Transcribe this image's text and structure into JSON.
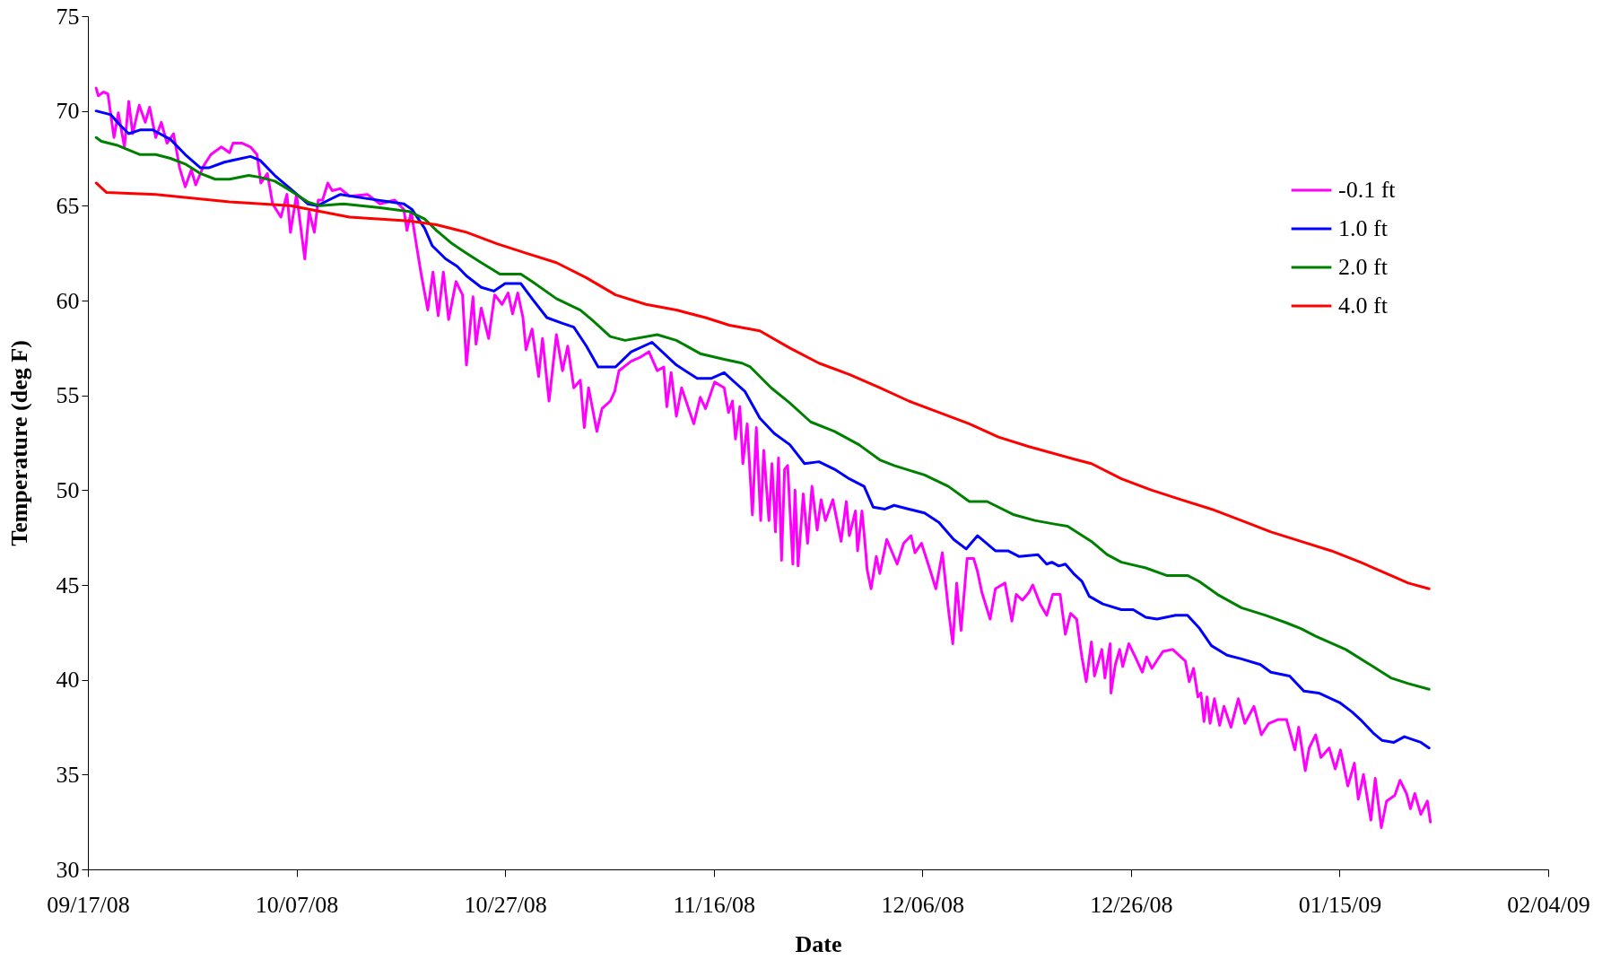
{
  "chart_data": {
    "type": "line",
    "xlabel": "Date",
    "ylabel": "Temperature (deg F)",
    "xlim": [
      "2008-09-17",
      "2009-02-04"
    ],
    "xticks": [
      {
        "value": "2008-09-17",
        "label": "09/17/08"
      },
      {
        "value": "2008-10-07",
        "label": "10/07/08"
      },
      {
        "value": "2008-10-27",
        "label": "10/27/08"
      },
      {
        "value": "2008-11-16",
        "label": "11/16/08"
      },
      {
        "value": "2008-12-06",
        "label": "12/06/08"
      },
      {
        "value": "2008-12-26",
        "label": "12/26/08"
      },
      {
        "value": "2009-01-15",
        "label": "01/15/09"
      },
      {
        "value": "2009-02-04",
        "label": "02/04/09"
      }
    ],
    "ylim": [
      30,
      75
    ],
    "yticks": [
      30,
      35,
      40,
      45,
      50,
      55,
      60,
      65,
      70,
      75
    ],
    "grid": false,
    "legend": "top right",
    "series": [
      {
        "name": "-0.1 ft",
        "color": "#ff00ff",
        "x": [
          "2008-09-17T19:00",
          "2008-09-18T00:00",
          "2008-09-18T12:00",
          "2008-09-18T22:00",
          "2008-09-19T12:00",
          "2008-09-19T22:00",
          "2008-09-20T12:00",
          "2008-09-20T22:00",
          "2008-09-21T07:00",
          "2008-09-21T22:00",
          "2008-09-22T12:00",
          "2008-09-22T22:00",
          "2008-09-23T12:00",
          "2008-09-24T01:00",
          "2008-09-24T14:00",
          "2008-09-25T05:00",
          "2008-09-25T19:00",
          "2008-09-26T08:00",
          "2008-09-26T22:00",
          "2008-09-27T08:00",
          "2008-09-28T02:00",
          "2008-09-28T19:00",
          "2008-09-29T19:00",
          "2008-09-30T14:00",
          "2008-09-30T22:00",
          "2008-10-01T19:00",
          "2008-10-02T14:00",
          "2008-10-03T05:00",
          "2008-10-03T14:00",
          "2008-10-04T05:00",
          "2008-10-04T17:00",
          "2008-10-05T12:00",
          "2008-10-06T02:00",
          "2008-10-06T10:00",
          "2008-10-07T00:00",
          "2008-10-07T19:00",
          "2008-10-08T05:00",
          "2008-10-08T17:00",
          "2008-10-09T02:00",
          "2008-10-09T12:00",
          "2008-10-10T00:00",
          "2008-10-10T10:00",
          "2008-10-11T05:00",
          "2008-10-12T02:00",
          "2008-10-13T19:00",
          "2008-10-15T00:00",
          "2008-10-16T10:00",
          "2008-10-17T07:00",
          "2008-10-17T14:00",
          "2008-10-18T00:00",
          "2008-10-18T10:00",
          "2008-10-18T22:00",
          "2008-10-19T14:00",
          "2008-10-20T02:00",
          "2008-10-20T14:00",
          "2008-10-21T02:00",
          "2008-10-21T14:00",
          "2008-10-22T07:00",
          "2008-10-22T22:00",
          "2008-10-23T07:00",
          "2008-10-23T22:00",
          "2008-10-24T05:00",
          "2008-10-24T17:00",
          "2008-10-25T10:00",
          "2008-10-26T00:00",
          "2008-10-26T17:00",
          "2008-10-27T07:00",
          "2008-10-27T17:00",
          "2008-10-28T05:00",
          "2008-10-28T17:00",
          "2008-10-29T00:00",
          "2008-10-29T14:00",
          "2008-10-30T05:00",
          "2008-10-30T14:00",
          "2008-10-31T05:00",
          "2008-10-31T22:00",
          "2008-11-01T12:00",
          "2008-11-02T00:00",
          "2008-11-02T14:00",
          "2008-11-03T05:00",
          "2008-11-03T14:00",
          "2008-11-04T00:00",
          "2008-11-04T19:00",
          "2008-11-05T07:00",
          "2008-11-06T02:00",
          "2008-11-06T12:00",
          "2008-11-06T22:00",
          "2008-11-08T02:00",
          "2008-11-08T22:00",
          "2008-11-09T19:00",
          "2008-11-10T14:00",
          "2008-11-11T05:00",
          "2008-11-11T12:00",
          "2008-11-11T22:00",
          "2008-11-12T10:00",
          "2008-11-12T22:00",
          "2008-11-14T02:00",
          "2008-11-14T17:00",
          "2008-11-15T05:00",
          "2008-11-16T02:00",
          "2008-11-17T00:00",
          "2008-11-17T10:00",
          "2008-11-17T19:00",
          "2008-11-18T02:00",
          "2008-11-18T12:00",
          "2008-11-18T19:00",
          "2008-11-19T05:00",
          "2008-11-19T17:00",
          "2008-11-20T02:00",
          "2008-11-20T12:00",
          "2008-11-20T19:00",
          "2008-11-21T07:00",
          "2008-11-21T14:00",
          "2008-11-21T22:00",
          "2008-11-22T05:00",
          "2008-11-22T12:00",
          "2008-11-22T19:00",
          "2008-11-23T02:00",
          "2008-11-23T14:00",
          "2008-11-23T19:00",
          "2008-11-24T02:00",
          "2008-11-24T14:00",
          "2008-11-25T00:00",
          "2008-11-25T10:00",
          "2008-11-25T22:00",
          "2008-11-26T07:00",
          "2008-11-26T17:00",
          "2008-11-27T10:00",
          "2008-11-28T05:00",
          "2008-11-28T17:00",
          "2008-11-29T00:00",
          "2008-11-29T14:00",
          "2008-11-29T19:00",
          "2008-11-30T05:00",
          "2008-11-30T12:00",
          "2008-11-30T17:00",
          "2008-12-01T02:00",
          "2008-12-01T14:00",
          "2008-12-01T22:00",
          "2008-12-02T14:00",
          "2008-12-03T14:00",
          "2008-12-04T05:00",
          "2008-12-04T22:00",
          "2008-12-05T07:00",
          "2008-12-05T22:00",
          "2008-12-06T19:00",
          "2008-12-07T07:00",
          "2008-12-07T22:00",
          "2008-12-08T12:00",
          "2008-12-08T22:00",
          "2008-12-09T07:00",
          "2008-12-09T17:00",
          "2008-12-10T07:00",
          "2008-12-10T22:00",
          "2008-12-11T07:00",
          "2008-12-11T17:00",
          "2008-12-12T12:00",
          "2008-12-13T00:00",
          "2008-12-13T22:00",
          "2008-12-14T14:00",
          "2008-12-15T00:00",
          "2008-12-15T14:00",
          "2008-12-16T05:00",
          "2008-12-16T14:00",
          "2008-12-17T07:00",
          "2008-12-17T22:00",
          "2008-12-18T12:00",
          "2008-12-19T05:00",
          "2008-12-19T17:00",
          "2008-12-20T05:00",
          "2008-12-20T19:00",
          "2008-12-21T02:00",
          "2008-12-21T07:00",
          "2008-12-21T17:00",
          "2008-12-22T05:00",
          "2008-12-22T12:00",
          "2008-12-23T05:00",
          "2008-12-23T12:00",
          "2008-12-24T00:00",
          "2008-12-24T02:00",
          "2008-12-24T12:00",
          "2008-12-24T22:00",
          "2008-12-25T05:00",
          "2008-12-25T19:00",
          "2008-12-26T10:00",
          "2008-12-27T02:00",
          "2008-12-27T12:00",
          "2008-12-28T00:00",
          "2008-12-28T17:00",
          "2008-12-29T02:00",
          "2008-12-30T00:00",
          "2008-12-30T19:00",
          "2008-12-31T05:00",
          "2008-12-31T14:00",
          "2009-01-01T00:00",
          "2009-01-01T10:00",
          "2009-01-01T17:00",
          "2009-01-02T00:00",
          "2009-01-02T07:00",
          "2009-01-02T14:00",
          "2009-01-03T00:00",
          "2009-01-03T12:00",
          "2009-01-03T22:00",
          "2009-01-04T14:00",
          "2009-01-05T07:00",
          "2009-01-05T22:00",
          "2009-01-06T19:00",
          "2009-01-07T12:00",
          "2009-01-08T05:00",
          "2009-01-09T02:00",
          "2009-01-09T22:00",
          "2009-01-10T17:00",
          "2009-01-11T02:00",
          "2009-01-11T17:00",
          "2009-01-12T02:00",
          "2009-01-12T17:00",
          "2009-01-13T05:00",
          "2009-01-14T00:00",
          "2009-01-14T14:00",
          "2009-01-15T02:00",
          "2009-01-15T19:00",
          "2009-01-16T10:00",
          "2009-01-16T19:00",
          "2009-01-17T07:00",
          "2009-01-18T00:00",
          "2009-01-18T10:00",
          "2009-01-19T00:00",
          "2009-01-19T12:00",
          "2009-01-20T07:00",
          "2009-01-20T19:00",
          "2009-01-21T10:00",
          "2009-01-21T19:00",
          "2009-01-22T05:00",
          "2009-01-22T19:00",
          "2009-01-23T10:00",
          "2009-01-23T17:00"
        ],
        "values": [
          71.2,
          70.8,
          71.0,
          70.9,
          68.6,
          69.9,
          68.1,
          70.5,
          68.8,
          70.3,
          69.4,
          70.2,
          68.6,
          69.4,
          68.3,
          68.8,
          67.0,
          66.0,
          66.9,
          66.1,
          67.1,
          67.7,
          68.1,
          67.8,
          68.3,
          68.3,
          68.1,
          67.7,
          66.2,
          66.7,
          65.1,
          64.4,
          65.6,
          63.6,
          65.6,
          62.2,
          64.7,
          63.6,
          65.3,
          65.3,
          66.2,
          65.8,
          65.9,
          65.5,
          65.6,
          65.1,
          65.3,
          64.8,
          63.7,
          64.7,
          63.2,
          61.5,
          59.5,
          61.5,
          59.2,
          61.5,
          59.0,
          61.0,
          60.3,
          56.6,
          60.2,
          57.7,
          59.6,
          58.0,
          60.3,
          59.8,
          60.4,
          59.3,
          60.4,
          59.1,
          57.4,
          58.5,
          56.0,
          58.0,
          54.7,
          58.2,
          56.3,
          57.6,
          55.4,
          55.8,
          53.3,
          55.4,
          53.1,
          54.3,
          54.7,
          55.2,
          56.3,
          56.8,
          57.0,
          57.3,
          56.3,
          56.5,
          54.4,
          56.2,
          53.9,
          55.4,
          53.5,
          54.9,
          54.3,
          55.7,
          55.4,
          54.1,
          54.7,
          52.7,
          54.4,
          51.4,
          53.5,
          48.7,
          53.3,
          48.4,
          52.1,
          48.4,
          51.4,
          47.8,
          51.7,
          46.3,
          51.1,
          51.3,
          46.1,
          50.0,
          46.0,
          49.8,
          47.2,
          50.2,
          47.9,
          49.5,
          48.4,
          49.5,
          47.3,
          49.4,
          47.6,
          48.9,
          46.8,
          48.9,
          47.2,
          45.8,
          44.8,
          46.5,
          45.6,
          47.4,
          46.1,
          47.2,
          47.6,
          46.7,
          47.2,
          45.7,
          44.8,
          46.7,
          43.7,
          41.9,
          45.1,
          42.6,
          46.4,
          46.4,
          45.7,
          44.6,
          43.2,
          44.8,
          45.1,
          43.1,
          44.5,
          44.2,
          44.6,
          45.0,
          44.0,
          43.4,
          44.5,
          44.5,
          42.4,
          43.5,
          43.2,
          42.0,
          41.2,
          39.9,
          42.0,
          40.2,
          41.6,
          40.1,
          41.9,
          39.3,
          40.8,
          41.6,
          40.7,
          41.9,
          41.2,
          40.4,
          41.2,
          40.6,
          41.2,
          41.5,
          41.6,
          41.2,
          41.0,
          39.9,
          40.6,
          39.1,
          39.3,
          37.8,
          39.1,
          37.7,
          39.0,
          37.6,
          38.6,
          37.5,
          39.0,
          37.7,
          38.6,
          37.1,
          37.7,
          37.9,
          37.9,
          36.3,
          37.5,
          35.2,
          36.4,
          37.1,
          35.9,
          36.4,
          35.3,
          36.3,
          34.4,
          35.6,
          33.7,
          35.0,
          32.6,
          34.8,
          32.2,
          33.6,
          33.9,
          34.7,
          34.0,
          33.2,
          34.0,
          32.9,
          33.6,
          32.5
        ]
      },
      {
        "name": "1.0 ft",
        "color": "#0000ff",
        "x": [
          "2008-09-17T19:00",
          "2008-09-19T05:00",
          "2008-09-20T00:00",
          "2008-09-20T22:00",
          "2008-09-22T00:00",
          "2008-09-23T05:00",
          "2008-09-24T22:00",
          "2008-09-26T08:00",
          "2008-09-27T19:00",
          "2008-09-28T14:00",
          "2008-09-30T02:00",
          "2008-10-02T14:00",
          "2008-10-03T12:00",
          "2008-10-04T22:00",
          "2008-10-06T10:00",
          "2008-10-08T02:00",
          "2008-10-09T00:00",
          "2008-10-10T02:00",
          "2008-10-11T05:00",
          "2008-10-13T12:00",
          "2008-10-17T07:00",
          "2008-10-18T02:00",
          "2008-10-19T07:00",
          "2008-10-20T00:00",
          "2008-10-21T07:00",
          "2008-10-22T10:00",
          "2008-10-23T07:00",
          "2008-10-24T17:00",
          "2008-10-25T22:00",
          "2008-10-27T00:00",
          "2008-10-28T12:00",
          "2008-10-29T14:00",
          "2008-10-31T00:00",
          "2008-11-01T12:00",
          "2008-11-02T14:00",
          "2008-11-03T19:00",
          "2008-11-04T22:00",
          "2008-11-06T14:00",
          "2008-11-08T02:00",
          "2008-11-10T02:00",
          "2008-11-12T10:00",
          "2008-11-14T10:00",
          "2008-11-15T19:00",
          "2008-11-17T00:00",
          "2008-11-17T19:00",
          "2008-11-19T00:00",
          "2008-11-20T10:00",
          "2008-11-21T19:00",
          "2008-11-23T07:00",
          "2008-11-24T17:00",
          "2008-11-26T02:00",
          "2008-11-27T14:00",
          "2008-11-29T00:00",
          "2008-11-30T10:00",
          "2008-12-01T07:00",
          "2008-12-02T10:00",
          "2008-12-03T07:00",
          "2008-12-04T17:00",
          "2008-12-06T05:00",
          "2008-12-07T14:00",
          "2008-12-09T00:00",
          "2008-12-10T05:00",
          "2008-12-11T07:00",
          "2008-12-13T00:00",
          "2008-12-14T05:00",
          "2008-12-15T07:00",
          "2008-12-17T02:00",
          "2008-12-17T22:00",
          "2008-12-18T10:00",
          "2008-12-19T02:00",
          "2008-12-19T17:00",
          "2008-12-20T12:00",
          "2008-12-21T07:00",
          "2008-12-22T00:00",
          "2008-12-23T07:00",
          "2008-12-25T02:00",
          "2008-12-26T05:00",
          "2008-12-27T10:00",
          "2008-12-28T12:00",
          "2008-12-30T07:00",
          "2008-12-31T10:00",
          "2009-01-01T14:00",
          "2009-01-02T17:00",
          "2009-01-04T05:00",
          "2009-01-05T14:00",
          "2009-01-07T10:00",
          "2009-01-08T10:00",
          "2009-01-10T05:00",
          "2009-01-11T14:00",
          "2009-01-13T00:00",
          "2009-01-15T00:00",
          "2009-01-16T05:00",
          "2009-01-17T00:00",
          "2009-01-18T05:00",
          "2009-01-19T02:00",
          "2009-01-20T05:00",
          "2009-01-21T05:00",
          "2009-01-22T19:00",
          "2009-01-23T14:00"
        ],
        "values": [
          70.0,
          69.8,
          69.3,
          68.8,
          69.0,
          69.0,
          68.5,
          67.7,
          67.0,
          67.0,
          67.3,
          67.6,
          67.4,
          66.6,
          65.9,
          65.1,
          65.0,
          65.3,
          65.6,
          65.4,
          65.1,
          64.8,
          63.8,
          62.9,
          62.2,
          61.8,
          61.3,
          60.7,
          60.5,
          60.9,
          60.9,
          60.1,
          59.1,
          58.8,
          58.6,
          57.6,
          56.5,
          56.5,
          57.3,
          57.8,
          56.6,
          55.9,
          55.9,
          56.2,
          55.8,
          55.2,
          53.8,
          53.0,
          52.4,
          51.4,
          51.5,
          51.1,
          50.6,
          50.2,
          49.1,
          49.0,
          49.2,
          49.0,
          48.8,
          48.3,
          47.4,
          46.9,
          47.6,
          46.8,
          46.8,
          46.5,
          46.6,
          46.1,
          46.2,
          46.0,
          46.1,
          45.6,
          45.2,
          44.4,
          44.0,
          43.7,
          43.7,
          43.3,
          43.2,
          43.4,
          43.4,
          42.7,
          41.8,
          41.3,
          41.1,
          40.8,
          40.4,
          40.2,
          39.4,
          39.3,
          38.8,
          38.3,
          37.9,
          37.2,
          36.8,
          36.7,
          37.0,
          36.7,
          36.4
        ]
      },
      {
        "name": "2.0 ft",
        "color": "#008000",
        "x": [
          "2008-09-17T19:00",
          "2008-09-18T07:00",
          "2008-09-19T18:00",
          "2008-09-22T00:00",
          "2008-09-23T12:00",
          "2008-09-24T22:00",
          "2008-09-26T08:00",
          "2008-09-27T19:00",
          "2008-09-29T05:00",
          "2008-09-30T14:00",
          "2008-10-02T10:00",
          "2008-10-03T12:00",
          "2008-10-04T22:00",
          "2008-10-06T10:00",
          "2008-10-08T02:00",
          "2008-10-09T06:00",
          "2008-10-11T12:00",
          "2008-10-15T00:00",
          "2008-10-17T19:00",
          "2008-10-19T07:00",
          "2008-10-20T10:00",
          "2008-10-21T22:00",
          "2008-10-23T07:00",
          "2008-10-24T17:00",
          "2008-10-26T12:00",
          "2008-10-28T12:00",
          "2008-10-29T14:00",
          "2008-10-31T22:00",
          "2008-11-03T05:00",
          "2008-11-04T07:00",
          "2008-11-06T02:00",
          "2008-11-07T12:00",
          "2008-11-10T14:00",
          "2008-11-12T10:00",
          "2008-11-14T17:00",
          "2008-11-17T00:00",
          "2008-11-18T17:00",
          "2008-11-19T12:00",
          "2008-11-21T12:00",
          "2008-11-23T07:00",
          "2008-11-25T07:00",
          "2008-11-27T14:00",
          "2008-11-29T22:00",
          "2008-12-01T22:00",
          "2008-12-03T07:00",
          "2008-12-06T05:00",
          "2008-12-08T12:00",
          "2008-12-10T12:00",
          "2008-12-12T05:00",
          "2008-12-14T19:00",
          "2008-12-16T19:00",
          "2008-12-18T19:00",
          "2008-12-19T22:00",
          "2008-12-22T05:00",
          "2008-12-23T17:00",
          "2008-12-25T02:00",
          "2008-12-27T10:00",
          "2008-12-29T10:00",
          "2008-12-31T10:00",
          "2009-01-01T12:00",
          "2009-01-03T07:00",
          "2009-01-05T14:00",
          "2009-01-07T22:00",
          "2009-01-09T22:00",
          "2009-01-11T07:00",
          "2009-01-12T17:00",
          "2009-01-15T14:00",
          "2009-01-17T22:00",
          "2009-01-19T22:00",
          "2009-01-21T14:00",
          "2009-01-23T14:00"
        ],
        "values": [
          68.6,
          68.4,
          68.2,
          67.7,
          67.7,
          67.5,
          67.2,
          66.7,
          66.4,
          66.4,
          66.6,
          66.5,
          66.3,
          65.8,
          65.2,
          65.0,
          65.1,
          64.9,
          64.7,
          64.3,
          63.7,
          63.0,
          62.5,
          62.0,
          61.4,
          61.4,
          61.0,
          60.1,
          59.5,
          59.0,
          58.1,
          57.9,
          58.2,
          57.9,
          57.2,
          56.9,
          56.7,
          56.5,
          55.4,
          54.6,
          53.6,
          53.1,
          52.4,
          51.6,
          51.3,
          50.8,
          50.2,
          49.4,
          49.4,
          48.7,
          48.4,
          48.2,
          48.1,
          47.3,
          46.6,
          46.2,
          45.9,
          45.5,
          45.5,
          45.2,
          44.5,
          43.8,
          43.4,
          43.0,
          42.7,
          42.3,
          41.6,
          40.8,
          40.1,
          39.8,
          39.5
        ]
      },
      {
        "name": "4.0 ft",
        "color": "#ff0000",
        "x": [
          "2008-09-17T19:00",
          "2008-09-18T19:00",
          "2008-09-23T12:00",
          "2008-09-30T14:00",
          "2008-10-06T10:00",
          "2008-10-12T02:00",
          "2008-10-17T19:00",
          "2008-10-20T10:00",
          "2008-10-23T07:00",
          "2008-10-26T05:00",
          "2008-10-29T00:00",
          "2008-10-31T22:00",
          "2008-11-03T19:00",
          "2008-11-06T14:00",
          "2008-11-09T12:00",
          "2008-11-12T10:00",
          "2008-11-15T05:00",
          "2008-11-17T12:00",
          "2008-11-20T10:00",
          "2008-11-23T07:00",
          "2008-11-26T02:00",
          "2008-11-29T00:00",
          "2008-12-01T22:00",
          "2008-12-04T17:00",
          "2008-12-07T14:00",
          "2008-12-10T12:00",
          "2008-12-13T07:00",
          "2008-12-16T05:00",
          "2008-12-20T19:00",
          "2008-12-22T05:00",
          "2008-12-25T02:00",
          "2008-12-28T00:00",
          "2008-12-30T19:00",
          "2009-01-02T17:00",
          "2009-01-05T14:00",
          "2009-01-08T10:00",
          "2009-01-11T07:00",
          "2009-01-14T05:00",
          "2009-01-17T00:00",
          "2009-01-19T22:00",
          "2009-01-21T14:00",
          "2009-01-23T14:00"
        ],
        "values": [
          66.2,
          65.7,
          65.6,
          65.2,
          65.0,
          64.4,
          64.2,
          64.0,
          63.6,
          63.0,
          62.5,
          62.0,
          61.2,
          60.3,
          59.8,
          59.5,
          59.1,
          58.7,
          58.4,
          57.5,
          56.7,
          56.1,
          55.4,
          54.7,
          54.1,
          53.5,
          52.8,
          52.3,
          51.6,
          51.4,
          50.6,
          50.0,
          49.5,
          49.0,
          48.4,
          47.8,
          47.3,
          46.8,
          46.2,
          45.5,
          45.1,
          44.8
        ]
      }
    ]
  }
}
